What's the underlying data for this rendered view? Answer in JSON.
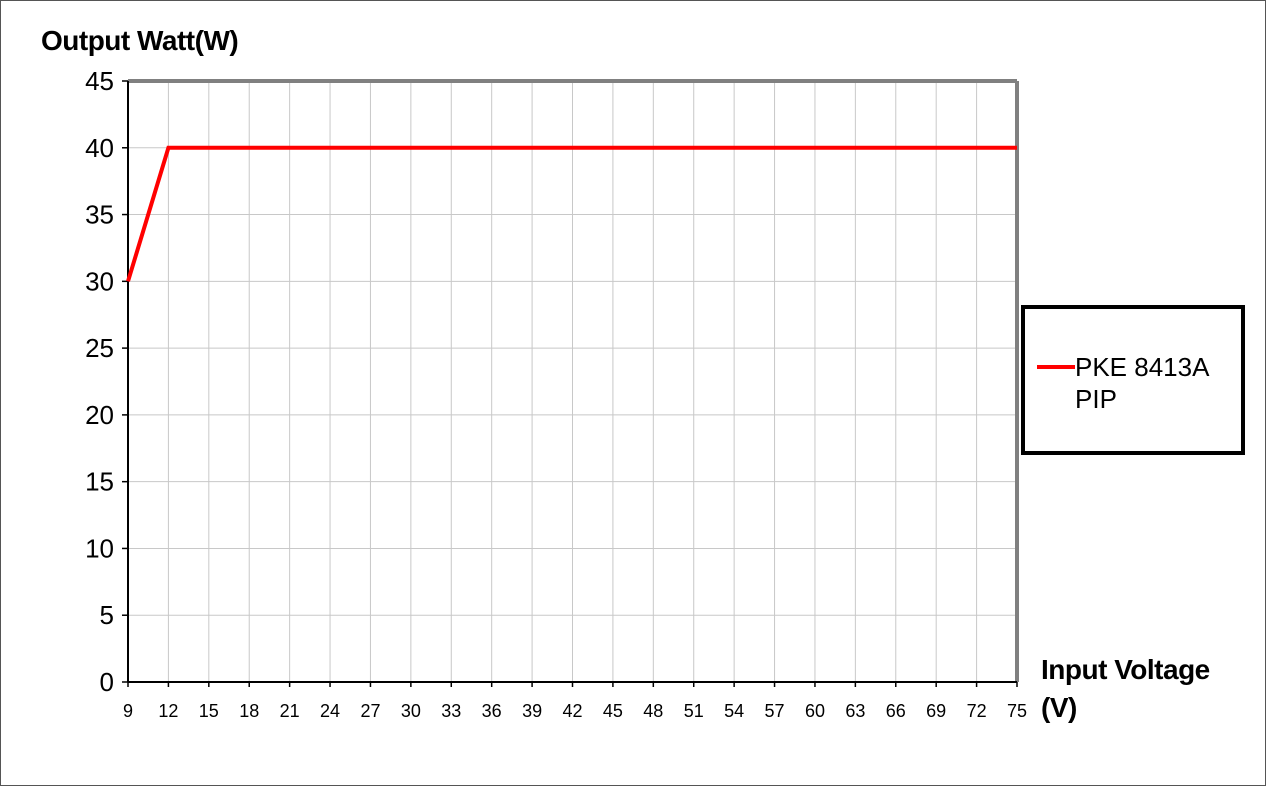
{
  "chart_data": {
    "type": "line",
    "ylabel": "Output Watt(W)",
    "xlabel_line1": "Input Voltage",
    "xlabel_line2": "(V)",
    "x_ticks": [
      "9",
      "12",
      "15",
      "18",
      "21",
      "24",
      "27",
      "30",
      "33",
      "36",
      "39",
      "42",
      "45",
      "48",
      "51",
      "54",
      "57",
      "60",
      "63",
      "66",
      "69",
      "72",
      "75"
    ],
    "y_ticks": [
      "0",
      "5",
      "10",
      "15",
      "20",
      "25",
      "30",
      "35",
      "40",
      "45"
    ],
    "xlim": [
      9,
      75
    ],
    "ylim": [
      0,
      45
    ],
    "grid": true,
    "legend_position": "right",
    "series": [
      {
        "name_line1": "PKE 8413A",
        "name_line2": "PIP",
        "color": "#ff0000",
        "points": [
          [
            9,
            30
          ],
          [
            12,
            40
          ],
          [
            75,
            40
          ]
        ]
      }
    ]
  }
}
